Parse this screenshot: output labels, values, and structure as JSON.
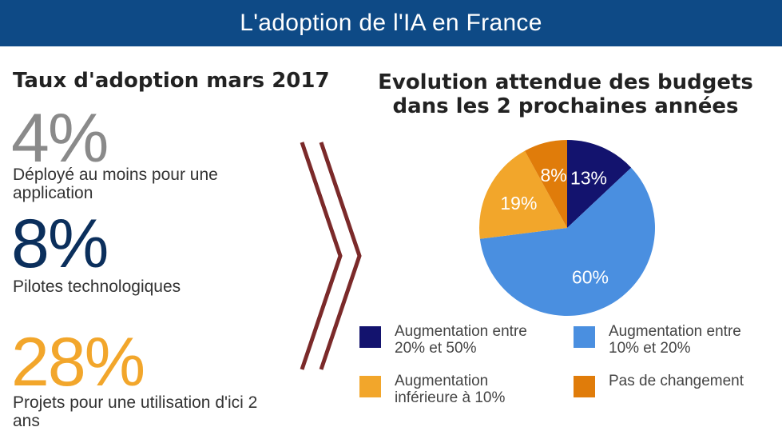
{
  "header": {
    "title": "L'adoption de l'IA en France"
  },
  "left": {
    "title": "Taux d'adoption mars 2017",
    "stats": [
      {
        "value": "4%",
        "label": "Déployé au moins pour une application",
        "color": "#8a8a8a"
      },
      {
        "value": "8%",
        "label": "Pilotes technologiques",
        "color": "#0b2f5c"
      },
      {
        "value": "28%",
        "label": "Projets pour une utilisation d'ici 2 ans",
        "color": "#f2a62b"
      }
    ]
  },
  "chart_data": {
    "type": "pie",
    "title": "Evolution attendue des budgets dans les 2 prochaines années",
    "slices": [
      {
        "label": "Augmentation entre 20% et 50%",
        "value": 13,
        "value_label": "13%",
        "color": "#13136e"
      },
      {
        "label": "Augmentation entre 10% et 20%",
        "value": 60,
        "value_label": "60%",
        "color": "#4a8fe0"
      },
      {
        "label": "Augmentation inférieure à 10%",
        "value": 19,
        "value_label": "19%",
        "color": "#f2a62b"
      },
      {
        "label": "Pas de changement",
        "value": 8,
        "value_label": "8%",
        "color": "#e07c0a"
      }
    ],
    "legend_placement": "bottom"
  },
  "colors": {
    "header": "#0e4a86",
    "chevron": "#7b2a2a"
  }
}
